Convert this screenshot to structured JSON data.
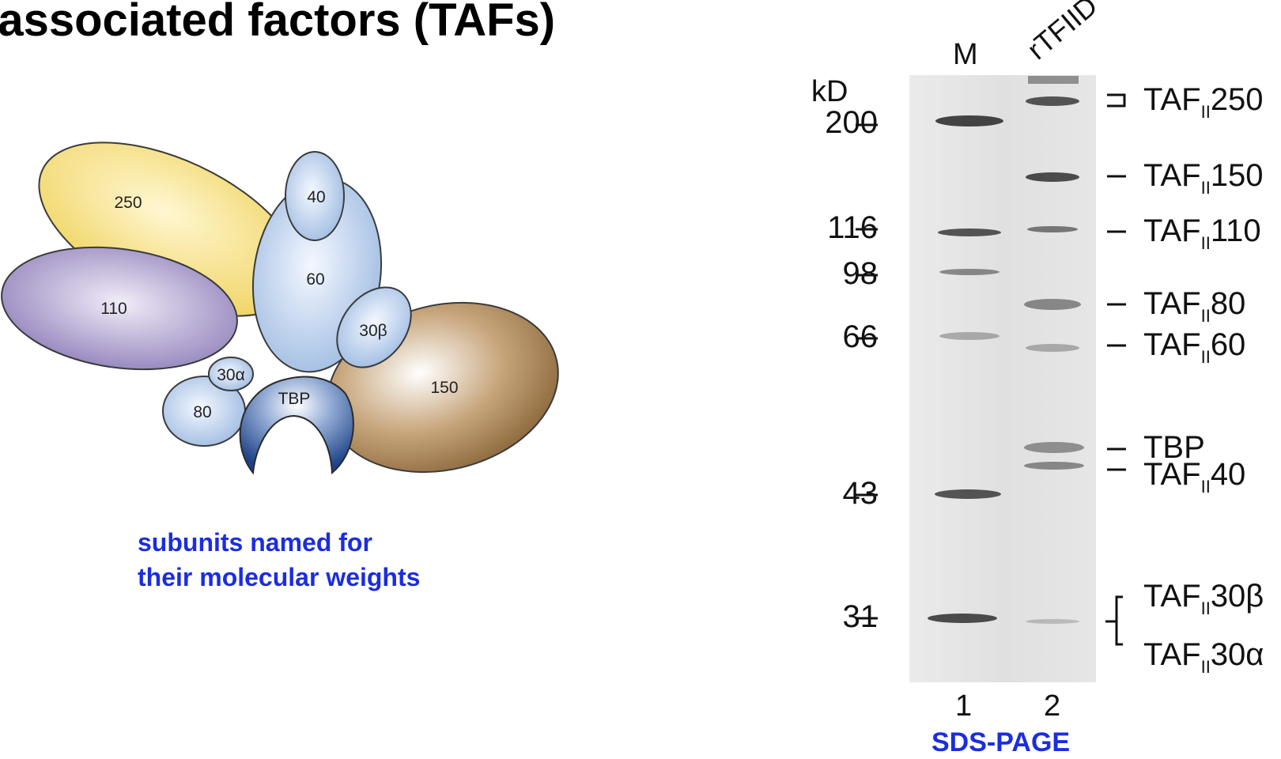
{
  "title": "-associated factors (TAFs)",
  "diagram": {
    "subunits": [
      "250",
      "40",
      "60",
      "110",
      "30β",
      "30α",
      "TBP",
      "150",
      "80"
    ],
    "caption_line1": "subunits named for",
    "caption_line2": "their molecular weights"
  },
  "gel": {
    "lane_headers": [
      "M",
      "rTFIID"
    ],
    "unit_label": "kD",
    "markers": [
      "200",
      "116",
      "98",
      "66",
      "43",
      "31"
    ],
    "bands": [
      {
        "prefix": "TAF",
        "sub": "II",
        "suffix": "250"
      },
      {
        "prefix": "TAF",
        "sub": "II",
        "suffix": "150"
      },
      {
        "prefix": "TAF",
        "sub": "II",
        "suffix": "110"
      },
      {
        "prefix": "TAF",
        "sub": "II",
        "suffix": "80"
      },
      {
        "prefix": "TAF",
        "sub": "II",
        "suffix": "60"
      },
      {
        "prefix": "",
        "sub": "",
        "suffix": "TBP"
      },
      {
        "prefix": "TAF",
        "sub": "II",
        "suffix": "40"
      },
      {
        "prefix": "TAF",
        "sub": "II",
        "suffix": "30β"
      },
      {
        "prefix": "TAF",
        "sub": "II",
        "suffix": "30α"
      }
    ],
    "lane_numbers": [
      "1",
      "2"
    ],
    "caption": "SDS-PAGE"
  },
  "colors": {
    "yellow": "#f2d769",
    "lightblue": "#aac4e6",
    "purple": "#a493c4",
    "brown": "#9a7448",
    "tbp_blue": "#2f5a9c",
    "caption_blue": "#1b2de0"
  }
}
